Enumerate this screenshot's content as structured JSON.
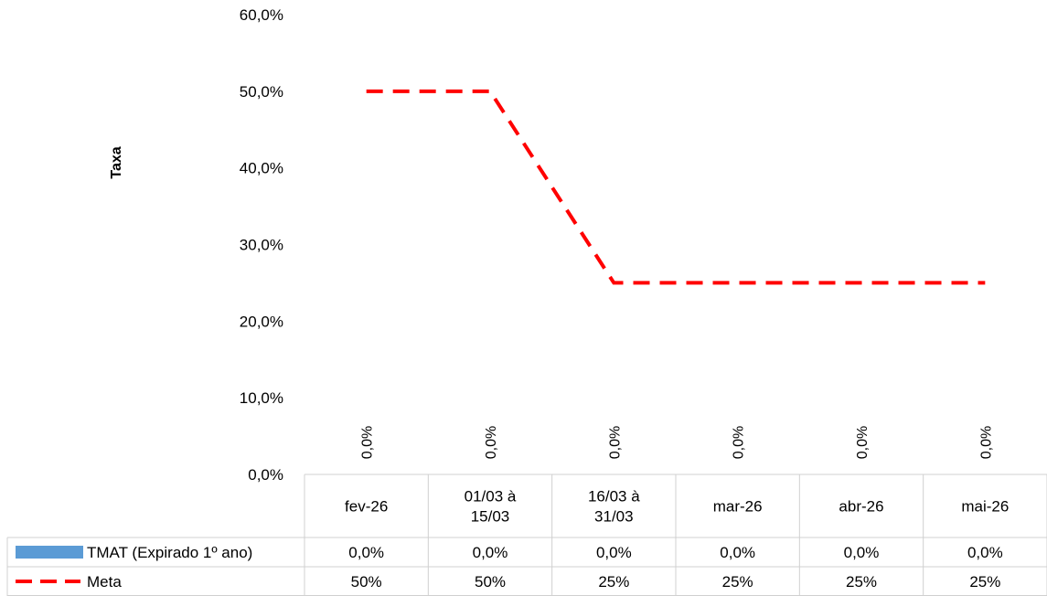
{
  "chart_data": {
    "type": "bar",
    "title": "",
    "xlabel": "",
    "ylabel": "Taxa",
    "ylim": [
      0,
      60
    ],
    "y_ticks": [
      "0,0%",
      "10,0%",
      "20,0%",
      "30,0%",
      "40,0%",
      "50,0%",
      "60,0%"
    ],
    "y_tick_values": [
      0,
      10,
      20,
      30,
      40,
      50,
      60
    ],
    "categories": [
      [
        "fev-26"
      ],
      [
        "01/03 à",
        "15/03"
      ],
      [
        "16/03 à",
        "31/03"
      ],
      [
        "mar-26"
      ],
      [
        "abr-26"
      ],
      [
        "mai-26"
      ]
    ],
    "series": [
      {
        "name": "TMAT (Expirado 1º ano)",
        "kind": "bar",
        "color": "#5B9BD5",
        "values": [
          0,
          0,
          0,
          0,
          0,
          0
        ],
        "labels": [
          "0,0%",
          "0,0%",
          "0,0%",
          "0,0%",
          "0,0%",
          "0,0%"
        ]
      },
      {
        "name": "Meta",
        "kind": "line",
        "style": "dashed",
        "color": "#FF0000",
        "values": [
          50,
          50,
          25,
          25,
          25,
          25
        ],
        "labels": [
          "50%",
          "50%",
          "25%",
          "25%",
          "25%",
          "25%"
        ]
      }
    ],
    "grid": false,
    "legend": "data-table"
  }
}
